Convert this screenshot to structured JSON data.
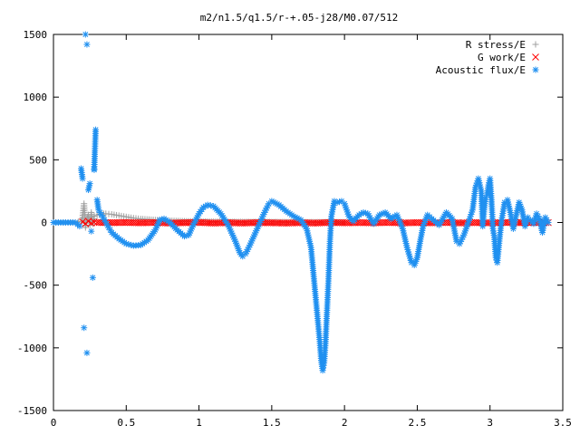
{
  "chart_data": {
    "type": "scatter",
    "title": "m2/n1.5/q1.5/r-+.05-j28/M0.07/512",
    "xlabel": "",
    "ylabel": "",
    "xlim": [
      0,
      3.5
    ],
    "ylim": [
      -1500,
      1500
    ],
    "x_ticks": [
      0,
      0.5,
      1,
      1.5,
      2,
      2.5,
      3,
      3.5
    ],
    "x_tick_labels": [
      "0",
      "0.5",
      "1",
      "1.5",
      "2",
      "2.5",
      "3",
      "3.5"
    ],
    "y_ticks": [
      -1500,
      -1000,
      -500,
      0,
      500,
      1000,
      1500
    ],
    "y_tick_labels": [
      "-1500",
      "-1000",
      "-500",
      "0",
      "500",
      "1000",
      "1500"
    ],
    "grid": false,
    "legend_position": "top-right",
    "series": [
      {
        "name": "R stress/E",
        "marker": "plus",
        "color": "#a0a0a0",
        "points": [
          [
            0.0,
            0
          ],
          [
            0.05,
            0
          ],
          [
            0.1,
            0
          ],
          [
            0.15,
            0
          ],
          [
            0.19,
            10
          ],
          [
            0.2,
            40
          ],
          [
            0.21,
            150
          ],
          [
            0.22,
            -40
          ],
          [
            0.23,
            30
          ],
          [
            0.24,
            60
          ],
          [
            0.25,
            -20
          ],
          [
            0.26,
            80
          ],
          [
            0.27,
            -10
          ],
          [
            0.28,
            50
          ],
          [
            0.3,
            60
          ],
          [
            0.33,
            70
          ],
          [
            0.36,
            70
          ],
          [
            0.4,
            65
          ],
          [
            0.45,
            55
          ],
          [
            0.5,
            45
          ],
          [
            0.55,
            35
          ],
          [
            0.6,
            28
          ],
          [
            0.7,
            20
          ],
          [
            0.8,
            14
          ],
          [
            0.9,
            10
          ],
          [
            1.0,
            8
          ],
          [
            1.2,
            5
          ],
          [
            1.4,
            4
          ],
          [
            1.6,
            3
          ],
          [
            1.8,
            2
          ],
          [
            2.0,
            2
          ],
          [
            2.4,
            1
          ],
          [
            2.8,
            1
          ],
          [
            3.2,
            1
          ],
          [
            3.4,
            0
          ]
        ]
      },
      {
        "name": "G work/E",
        "marker": "cross",
        "color": "#ff0000",
        "points": [
          [
            0.2,
            5
          ],
          [
            0.22,
            -10
          ],
          [
            0.24,
            10
          ],
          [
            0.26,
            -5
          ],
          [
            0.28,
            3
          ],
          [
            0.3,
            0
          ],
          [
            0.4,
            -2
          ],
          [
            0.5,
            0
          ],
          [
            0.6,
            -3
          ],
          [
            0.7,
            0
          ],
          [
            0.8,
            -5
          ],
          [
            0.9,
            -2
          ],
          [
            1.0,
            0
          ],
          [
            1.1,
            -5
          ],
          [
            1.2,
            -2
          ],
          [
            1.3,
            -5
          ],
          [
            1.4,
            -1
          ],
          [
            1.5,
            -3
          ],
          [
            1.6,
            -5
          ],
          [
            1.7,
            -2
          ],
          [
            1.8,
            -5
          ],
          [
            1.9,
            0
          ],
          [
            2.0,
            -3
          ],
          [
            2.1,
            -1
          ],
          [
            2.2,
            -3
          ],
          [
            2.3,
            0
          ],
          [
            2.4,
            -4
          ],
          [
            2.5,
            -1
          ],
          [
            2.6,
            -3
          ],
          [
            2.7,
            0
          ],
          [
            2.8,
            -4
          ],
          [
            2.9,
            -1
          ],
          [
            3.0,
            -3
          ],
          [
            3.1,
            0
          ],
          [
            3.2,
            -2
          ],
          [
            3.3,
            0
          ],
          [
            3.4,
            -1
          ]
        ]
      },
      {
        "name": "Acoustic flux/E",
        "marker": "asterisk",
        "color": "#2090f0",
        "points": [
          [
            0.0,
            0
          ],
          [
            0.05,
            0
          ],
          [
            0.1,
            0
          ],
          [
            0.15,
            0
          ],
          [
            0.18,
            -30
          ],
          [
            0.19,
            430
          ],
          [
            0.2,
            350
          ],
          [
            0.21,
            -840
          ],
          [
            0.22,
            1500
          ],
          [
            0.23,
            -1040
          ],
          [
            0.23,
            1420
          ],
          [
            0.24,
            260
          ],
          [
            0.25,
            310
          ],
          [
            0.26,
            -70
          ],
          [
            0.27,
            -440
          ],
          [
            0.28,
            420
          ],
          [
            0.28,
            430
          ],
          [
            0.29,
            740
          ],
          [
            0.3,
            180
          ],
          [
            0.31,
            100
          ],
          [
            0.33,
            60
          ],
          [
            0.35,
            20
          ],
          [
            0.38,
            -40
          ],
          [
            0.4,
            -80
          ],
          [
            0.45,
            -130
          ],
          [
            0.5,
            -170
          ],
          [
            0.55,
            -185
          ],
          [
            0.6,
            -180
          ],
          [
            0.65,
            -140
          ],
          [
            0.7,
            -60
          ],
          [
            0.73,
            20
          ],
          [
            0.76,
            30
          ],
          [
            0.8,
            0
          ],
          [
            0.85,
            -60
          ],
          [
            0.9,
            -110
          ],
          [
            0.93,
            -100
          ],
          [
            0.96,
            -20
          ],
          [
            1.0,
            70
          ],
          [
            1.03,
            120
          ],
          [
            1.06,
            140
          ],
          [
            1.1,
            130
          ],
          [
            1.15,
            70
          ],
          [
            1.2,
            -20
          ],
          [
            1.25,
            -150
          ],
          [
            1.28,
            -240
          ],
          [
            1.3,
            -270
          ],
          [
            1.32,
            -250
          ],
          [
            1.35,
            -180
          ],
          [
            1.4,
            -50
          ],
          [
            1.45,
            80
          ],
          [
            1.48,
            150
          ],
          [
            1.5,
            170
          ],
          [
            1.55,
            140
          ],
          [
            1.6,
            90
          ],
          [
            1.65,
            50
          ],
          [
            1.7,
            20
          ],
          [
            1.74,
            -50
          ],
          [
            1.77,
            -200
          ],
          [
            1.79,
            -450
          ],
          [
            1.81,
            -700
          ],
          [
            1.83,
            -950
          ],
          [
            1.84,
            -1100
          ],
          [
            1.85,
            -1180
          ],
          [
            1.86,
            -1120
          ],
          [
            1.87,
            -950
          ],
          [
            1.88,
            -700
          ],
          [
            1.89,
            -450
          ],
          [
            1.9,
            -150
          ],
          [
            1.91,
            50
          ],
          [
            1.93,
            170
          ],
          [
            1.95,
            160
          ],
          [
            1.98,
            170
          ],
          [
            2.0,
            150
          ],
          [
            2.03,
            50
          ],
          [
            2.06,
            10
          ],
          [
            2.1,
            60
          ],
          [
            2.13,
            80
          ],
          [
            2.16,
            70
          ],
          [
            2.2,
            -10
          ],
          [
            2.24,
            60
          ],
          [
            2.28,
            80
          ],
          [
            2.32,
            30
          ],
          [
            2.36,
            60
          ],
          [
            2.4,
            -50
          ],
          [
            2.43,
            -200
          ],
          [
            2.46,
            -320
          ],
          [
            2.48,
            -340
          ],
          [
            2.5,
            -280
          ],
          [
            2.52,
            -150
          ],
          [
            2.54,
            -30
          ],
          [
            2.57,
            60
          ],
          [
            2.6,
            30
          ],
          [
            2.65,
            -20
          ],
          [
            2.7,
            80
          ],
          [
            2.74,
            30
          ],
          [
            2.77,
            -150
          ],
          [
            2.79,
            -170
          ],
          [
            2.82,
            -100
          ],
          [
            2.86,
            30
          ],
          [
            2.88,
            100
          ],
          [
            2.9,
            280
          ],
          [
            2.92,
            350
          ],
          [
            2.94,
            250
          ],
          [
            2.95,
            -30
          ],
          [
            2.96,
            100
          ],
          [
            2.97,
            200
          ],
          [
            2.98,
            220
          ],
          [
            2.99,
            300
          ],
          [
            3.0,
            350
          ],
          [
            3.01,
            180
          ],
          [
            3.02,
            -50
          ],
          [
            3.03,
            -120
          ],
          [
            3.04,
            -280
          ],
          [
            3.05,
            -320
          ],
          [
            3.06,
            -200
          ],
          [
            3.07,
            -80
          ],
          [
            3.08,
            20
          ],
          [
            3.1,
            160
          ],
          [
            3.12,
            180
          ],
          [
            3.14,
            80
          ],
          [
            3.16,
            -50
          ],
          [
            3.18,
            60
          ],
          [
            3.2,
            160
          ],
          [
            3.22,
            100
          ],
          [
            3.24,
            -30
          ],
          [
            3.26,
            40
          ],
          [
            3.28,
            20
          ],
          [
            3.3,
            -10
          ],
          [
            3.32,
            70
          ],
          [
            3.34,
            30
          ],
          [
            3.36,
            -80
          ],
          [
            3.38,
            40
          ],
          [
            3.4,
            0
          ]
        ]
      }
    ]
  }
}
